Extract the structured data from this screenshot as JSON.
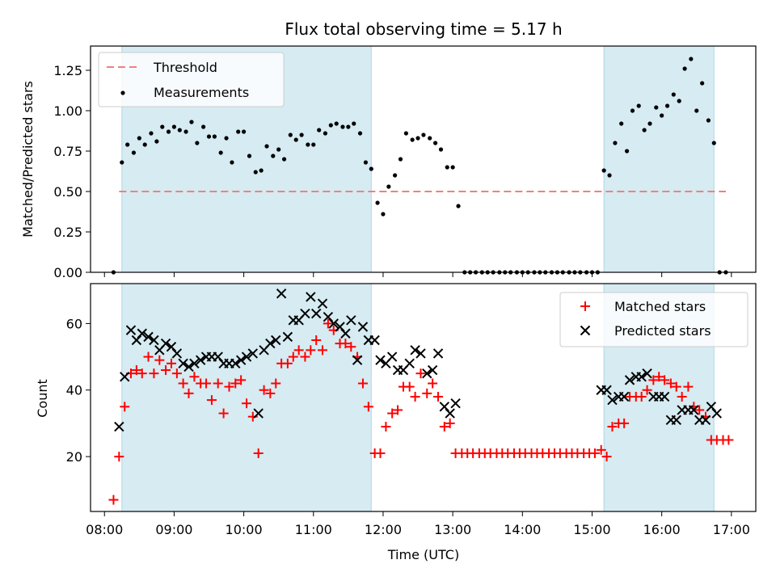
{
  "chart_data": [
    {
      "type": "scatter",
      "title": "Flux total observing time = 5.17 h",
      "ylabel": "Matched/Predicted stars",
      "xlabel": "",
      "ylim": [
        0,
        1.4
      ],
      "y_ticks": [
        "0.00",
        "0.25",
        "0.50",
        "0.75",
        "1.00",
        "1.25"
      ],
      "y_tick_values": [
        0,
        0.25,
        0.5,
        0.75,
        1.0,
        1.25
      ],
      "legend_position": "upper-left",
      "colors": {
        "threshold": "#f08080",
        "measurements": "#000000",
        "shade": "#add8e6"
      },
      "threshold": {
        "name": "Threshold",
        "value": 0.5,
        "x_start": 8.21,
        "x_end": 16.92
      },
      "measurements": {
        "name": "Measurements",
        "x": [
          8.13,
          8.25,
          8.33,
          8.42,
          8.5,
          8.58,
          8.67,
          8.75,
          8.83,
          8.92,
          9.0,
          9.08,
          9.17,
          9.25,
          9.33,
          9.42,
          9.5,
          9.58,
          9.67,
          9.75,
          9.83,
          9.92,
          10.0,
          10.08,
          10.17,
          10.25,
          10.33,
          10.42,
          10.5,
          10.58,
          10.67,
          10.75,
          10.83,
          10.92,
          11.0,
          11.08,
          11.17,
          11.25,
          11.33,
          11.42,
          11.5,
          11.58,
          11.67,
          11.75,
          11.83,
          11.92,
          12.0,
          12.08,
          12.17,
          12.25,
          12.33,
          12.42,
          12.5,
          12.58,
          12.67,
          12.75,
          12.83,
          12.92,
          13.0,
          13.08,
          13.17,
          13.25,
          13.33,
          13.42,
          13.5,
          13.58,
          13.67,
          13.75,
          13.83,
          13.92,
          14.0,
          14.08,
          14.17,
          14.25,
          14.33,
          14.42,
          14.5,
          14.58,
          14.67,
          14.75,
          14.83,
          14.92,
          15.0,
          15.08,
          15.17,
          15.25,
          15.33,
          15.42,
          15.5,
          15.58,
          15.67,
          15.75,
          15.83,
          15.92,
          16.0,
          16.08,
          16.17,
          16.25,
          16.33,
          16.42,
          16.5,
          16.58,
          16.67,
          16.75,
          16.83,
          16.92
        ],
        "y": [
          0.0,
          0.68,
          0.79,
          0.74,
          0.83,
          0.79,
          0.86,
          0.81,
          0.9,
          0.87,
          0.9,
          0.88,
          0.87,
          0.93,
          0.8,
          0.9,
          0.84,
          0.84,
          0.74,
          0.83,
          0.68,
          0.87,
          0.87,
          0.72,
          0.62,
          0.63,
          0.78,
          0.72,
          0.76,
          0.7,
          0.85,
          0.82,
          0.85,
          0.79,
          0.79,
          0.88,
          0.86,
          0.91,
          0.92,
          0.9,
          0.9,
          0.92,
          0.86,
          0.68,
          0.64,
          0.43,
          0.36,
          0.53,
          0.6,
          0.7,
          0.86,
          0.82,
          0.83,
          0.85,
          0.83,
          0.8,
          0.76,
          0.65,
          0.65,
          0.41,
          0.0,
          0.0,
          0.0,
          0.0,
          0.0,
          0.0,
          0.0,
          0.0,
          0.0,
          0.0,
          0.0,
          0.0,
          0.0,
          0.0,
          0.0,
          0.0,
          0.0,
          0.0,
          0.0,
          0.0,
          0.0,
          0.0,
          0.0,
          0.0,
          0.63,
          0.6,
          0.8,
          0.92,
          0.75,
          1.0,
          1.03,
          0.88,
          0.92,
          1.02,
          0.97,
          1.03,
          1.1,
          1.06,
          1.26,
          1.32,
          1.0,
          1.17,
          0.94,
          0.8,
          0.0,
          0.0
        ]
      }
    },
    {
      "type": "scatter",
      "title": "",
      "ylabel": "Count",
      "xlabel": "Time (UTC)",
      "ylim": [
        3.5,
        72
      ],
      "y_ticks": [
        "20",
        "40",
        "60"
      ],
      "y_tick_values": [
        20,
        40,
        60
      ],
      "xlim": [
        7.8,
        17.35
      ],
      "x_ticks": [
        "08:00",
        "09:00",
        "10:00",
        "11:00",
        "12:00",
        "13:00",
        "14:00",
        "15:00",
        "16:00",
        "17:00"
      ],
      "x_tick_values": [
        8,
        9,
        10,
        11,
        12,
        13,
        14,
        15,
        16,
        17
      ],
      "legend_position": "upper-right",
      "colors": {
        "matched": "#ff0000",
        "predicted": "#000000",
        "shade": "#add8e6"
      },
      "matched": {
        "name": "Matched stars",
        "x": [
          8.13,
          8.21,
          8.29,
          8.38,
          8.46,
          8.54,
          8.63,
          8.71,
          8.79,
          8.88,
          8.96,
          9.04,
          9.13,
          9.21,
          9.29,
          9.38,
          9.46,
          9.54,
          9.63,
          9.71,
          9.79,
          9.88,
          9.96,
          10.04,
          10.13,
          10.21,
          10.29,
          10.38,
          10.46,
          10.54,
          10.63,
          10.71,
          10.79,
          10.88,
          10.96,
          11.04,
          11.13,
          11.21,
          11.29,
          11.38,
          11.46,
          11.54,
          11.63,
          11.71,
          11.79,
          11.88,
          11.96,
          12.04,
          12.13,
          12.21,
          12.29,
          12.38,
          12.46,
          12.54,
          12.63,
          12.71,
          12.79,
          12.88,
          12.96,
          13.04,
          13.13,
          13.21,
          13.29,
          13.38,
          13.46,
          13.54,
          13.63,
          13.71,
          13.79,
          13.88,
          13.96,
          14.04,
          14.13,
          14.21,
          14.29,
          14.38,
          14.46,
          14.54,
          14.63,
          14.71,
          14.79,
          14.88,
          14.96,
          15.04,
          15.13,
          15.21,
          15.29,
          15.38,
          15.46,
          15.54,
          15.63,
          15.71,
          15.79,
          15.88,
          15.96,
          16.04,
          16.13,
          16.21,
          16.29,
          16.38,
          16.46,
          16.54,
          16.63,
          16.71,
          16.79,
          16.88,
          16.96
        ],
        "y": [
          7,
          20,
          35,
          45,
          46,
          45,
          50,
          45,
          49,
          46,
          48,
          45,
          42,
          39,
          44,
          42,
          42,
          37,
          42,
          33,
          41,
          42,
          43,
          36,
          32,
          21,
          40,
          39,
          42,
          48,
          48,
          50,
          52,
          50,
          52,
          55,
          52,
          60,
          58,
          54,
          54,
          53,
          50,
          42,
          35,
          21,
          21,
          29,
          33,
          34,
          41,
          41,
          38,
          45,
          39,
          42,
          38,
          29,
          30,
          21,
          21,
          21,
          21,
          21,
          21,
          21,
          21,
          21,
          21,
          21,
          21,
          21,
          21,
          21,
          21,
          21,
          21,
          21,
          21,
          21,
          21,
          21,
          21,
          21,
          22,
          20,
          29,
          30,
          30,
          38,
          38,
          38,
          40,
          43,
          44,
          43,
          42,
          41,
          38,
          41,
          35,
          34,
          32,
          25,
          25,
          25,
          25
        ]
      },
      "predicted": {
        "name": "Predicted stars",
        "x": [
          8.21,
          8.29,
          8.38,
          8.46,
          8.54,
          8.63,
          8.71,
          8.79,
          8.88,
          8.96,
          9.04,
          9.13,
          9.21,
          9.29,
          9.38,
          9.46,
          9.54,
          9.63,
          9.71,
          9.79,
          9.88,
          9.96,
          10.04,
          10.13,
          10.21,
          10.29,
          10.38,
          10.46,
          10.54,
          10.63,
          10.71,
          10.79,
          10.88,
          10.96,
          11.04,
          11.13,
          11.21,
          11.29,
          11.38,
          11.46,
          11.54,
          11.63,
          11.71,
          11.79,
          11.88,
          11.96,
          12.04,
          12.13,
          12.21,
          12.29,
          12.38,
          12.46,
          12.54,
          12.63,
          12.71,
          12.79,
          12.88,
          12.96,
          13.04,
          15.13,
          15.21,
          15.29,
          15.38,
          15.46,
          15.54,
          15.63,
          15.71,
          15.79,
          15.88,
          15.96,
          16.04,
          16.13,
          16.21,
          16.29,
          16.38,
          16.46,
          16.54,
          16.63,
          16.71,
          16.79
        ],
        "y": [
          29,
          44,
          58,
          55,
          57,
          56,
          55,
          52,
          54,
          53,
          51,
          48,
          47,
          48,
          49,
          50,
          50,
          50,
          48,
          48,
          48,
          49,
          50,
          51,
          33,
          52,
          54,
          55,
          69,
          56,
          61,
          61,
          63,
          68,
          63,
          66,
          62,
          60,
          59,
          57,
          61,
          49,
          59,
          55,
          55,
          49,
          48,
          50,
          46,
          46,
          48,
          52,
          51,
          45,
          46,
          51,
          35,
          33,
          36,
          40,
          40,
          37,
          38,
          38,
          43,
          44,
          44,
          45,
          38,
          38,
          38,
          31,
          31,
          34,
          34,
          34,
          31,
          31,
          35,
          33
        ],
        "y_fix": [
          29,
          44,
          58,
          55,
          57,
          56,
          55,
          52,
          54,
          53,
          51,
          48,
          47,
          48,
          49,
          50,
          50,
          50,
          48,
          48,
          48,
          49,
          50,
          51,
          33,
          52,
          54,
          55,
          69,
          56,
          61,
          61,
          63,
          68,
          63,
          66,
          62,
          60,
          59,
          57,
          61,
          49,
          59,
          55,
          55,
          49,
          48,
          50,
          46,
          46,
          48,
          52,
          51,
          45,
          46,
          51,
          35,
          33,
          36,
          40,
          40,
          37,
          38,
          38,
          43,
          44,
          44,
          45,
          38,
          38,
          38,
          31,
          31,
          34,
          34,
          34,
          31,
          31,
          35,
          33
        ]
      }
    }
  ],
  "shaded_intervals": [
    [
      8.25,
      11.83
    ],
    [
      15.17,
      16.75
    ]
  ]
}
